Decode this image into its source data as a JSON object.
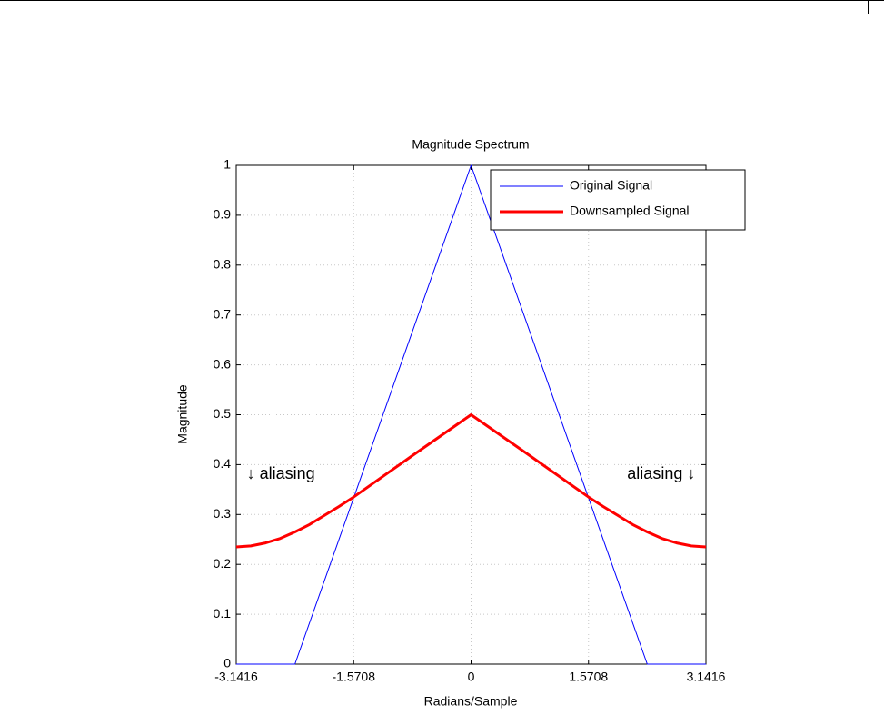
{
  "chart_data": {
    "type": "line",
    "title": "Magnitude Spectrum",
    "xlabel": "Radians/Sample",
    "ylabel": "Magnitude",
    "xlim": [
      -3.1416,
      3.1416
    ],
    "ylim": [
      0,
      1
    ],
    "xticks": [
      -3.1416,
      -1.5708,
      0,
      1.5708,
      3.1416
    ],
    "yticks": [
      0,
      0.1,
      0.2,
      0.3,
      0.4,
      0.5,
      0.6,
      0.7,
      0.8,
      0.9,
      1
    ],
    "grid": true,
    "legend": "northeast",
    "series": [
      {
        "name": "Original Signal",
        "color": "#0000ff",
        "width": 1,
        "x": [
          -3.1416,
          -2.3562,
          0,
          2.3562,
          3.1416
        ],
        "values": [
          0,
          0,
          1,
          0,
          0
        ]
      },
      {
        "name": "Downsampled Signal",
        "color": "#ff0000",
        "width": 3,
        "x": [
          -3.1416,
          -2.9452,
          -2.7489,
          -2.5525,
          -2.3562,
          -2.1598,
          -1.9635,
          -1.7671,
          -1.5708,
          -0.7854,
          0,
          0.7854,
          1.5708,
          1.7671,
          1.9635,
          2.1598,
          2.3562,
          2.5525,
          2.7489,
          2.9452,
          3.1416
        ],
        "values": [
          0.235,
          0.237,
          0.243,
          0.252,
          0.265,
          0.28,
          0.298,
          0.316,
          0.335,
          0.418,
          0.5,
          0.418,
          0.335,
          0.316,
          0.298,
          0.28,
          0.265,
          0.252,
          0.243,
          0.237,
          0.235
        ]
      }
    ],
    "annotations": [
      {
        "text": "↓ aliasing",
        "x": -3.0,
        "y": 0.38
      },
      {
        "text": "aliasing ↓",
        "x": 3.0,
        "y": 0.38
      }
    ]
  }
}
